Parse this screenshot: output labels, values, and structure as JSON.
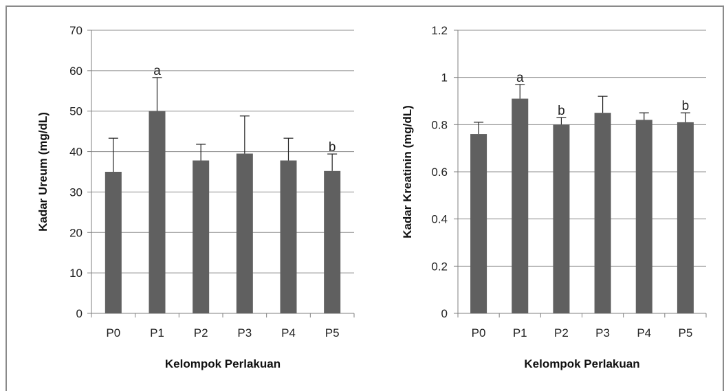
{
  "chart_data": [
    {
      "type": "bar",
      "categories": [
        "P0",
        "P1",
        "P2",
        "P3",
        "P4",
        "P5"
      ],
      "values": [
        35,
        50,
        37.8,
        39.5,
        37.8,
        35.2
      ],
      "error_bars": [
        8.3,
        8.3,
        4,
        9.3,
        5.5,
        4.2
      ],
      "annotations": [
        "",
        "a",
        "",
        "",
        "",
        "b"
      ],
      "ylim": [
        0,
        70
      ],
      "yticks": [
        "0",
        "10",
        "20",
        "30",
        "40",
        "50",
        "60",
        "70"
      ],
      "xlabel": "Kelompok Perlakuan",
      "ylabel": "Kadar Ureum (mg/dL)",
      "grid": true,
      "bar_color": "#606060"
    },
    {
      "type": "bar",
      "categories": [
        "P0",
        "P1",
        "P2",
        "P3",
        "P4",
        "P5"
      ],
      "values": [
        0.76,
        0.91,
        0.8,
        0.85,
        0.82,
        0.81
      ],
      "error_bars": [
        0.05,
        0.06,
        0.03,
        0.07,
        0.03,
        0.04
      ],
      "annotations": [
        "",
        "a",
        "b",
        "",
        "",
        "b"
      ],
      "ylim": [
        0,
        1.2
      ],
      "yticks": [
        "0",
        "0.2",
        "0.4",
        "0.6",
        "0.8",
        "1",
        "1.2"
      ],
      "xlabel": "Kelompok Perlakuan",
      "ylabel": "Kadar Kreatinin (mg/dL)",
      "grid": true,
      "bar_color": "#606060"
    }
  ]
}
